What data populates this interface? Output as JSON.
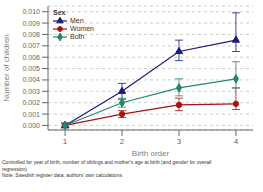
{
  "chart_data": {
    "type": "line",
    "x": [
      1,
      2,
      3,
      4
    ],
    "xlim": [
      0.7,
      4.3
    ],
    "xticks": [
      1,
      2,
      3,
      4
    ],
    "ylim": [
      -0.0004,
      0.0105
    ],
    "yticks": [
      {
        "value": 0,
        "label": "0.000"
      },
      0.001,
      0.002,
      0.003,
      0.004,
      0.005,
      0.006,
      0.007,
      0.008,
      0.009,
      {
        "value": 0.01,
        "label": "0.010"
      }
    ],
    "xlabel": "Birth order",
    "ylabel": "Number of children",
    "legend": "upper left",
    "legend_title": "Sex",
    "grid": true,
    "series": [
      {
        "name": "Men",
        "color": "#1a1a7a",
        "marker": "triangle",
        "values": [
          0,
          0.003,
          0.0065,
          0.0075
        ],
        "error_lo": [
          0.0002,
          0.0007,
          0.0008,
          0.001
        ],
        "error_hi": [
          0.0002,
          0.0007,
          0.001,
          0.0024
        ]
      },
      {
        "name": "Women",
        "color": "#aa1111",
        "marker": "circle",
        "values": [
          0,
          0.001,
          0.0018,
          0.0019
        ],
        "error_lo": [
          0.0002,
          0.0003,
          0.0005,
          0.0005
        ],
        "error_hi": [
          0.0002,
          0.0003,
          0.0006,
          0.0014
        ]
      },
      {
        "name": "Both",
        "color": "#228866",
        "marker": "diamond",
        "values": [
          0,
          0.002,
          0.0033,
          0.0041
        ],
        "error_lo": [
          0.0002,
          0.0004,
          0.0007,
          0.0008
        ],
        "error_hi": [
          0.0002,
          0.0004,
          0.0008,
          0.0015
        ]
      }
    ],
    "annotations": [
      "Controlled for year of birth, number of siblings and mother's age at birth (and gender for overall",
      "regression)",
      "Note: Swedish register data, authors' own calculations"
    ]
  }
}
